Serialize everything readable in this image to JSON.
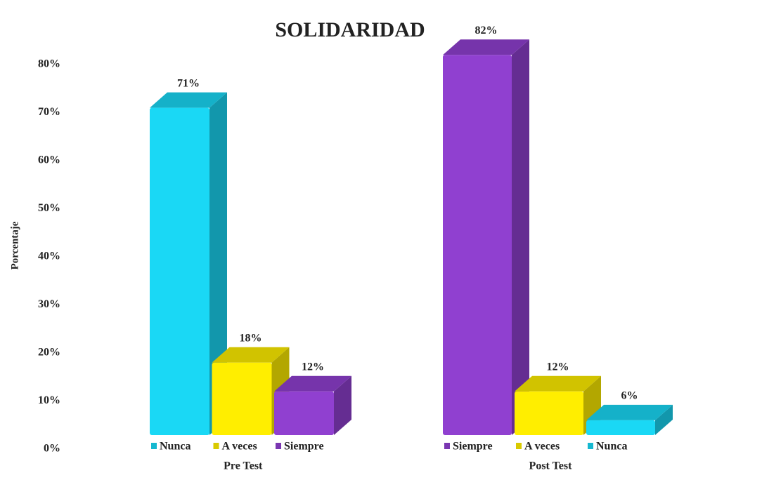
{
  "chart_data": {
    "type": "bar3d",
    "title": "SOLIDARIDAD",
    "ylabel": "Porcentaje",
    "ylim": [
      0,
      80
    ],
    "yticks": [
      {
        "value": 0,
        "label": "0%"
      },
      {
        "value": 10,
        "label": "10%"
      },
      {
        "value": 20,
        "label": "20%"
      },
      {
        "value": 30,
        "label": "30%"
      },
      {
        "value": 40,
        "label": "40%"
      },
      {
        "value": 50,
        "label": "50%"
      },
      {
        "value": 60,
        "label": "60%"
      },
      {
        "value": 70,
        "label": "70%"
      },
      {
        "value": 80,
        "label": "80%"
      }
    ],
    "groups": [
      {
        "name": "Pre Test",
        "categories": [
          "Nunca",
          "A veces",
          "Siempre"
        ],
        "colors": [
          "#1ad8f5",
          "#ffee00",
          "#9040d0"
        ],
        "values": [
          71,
          18,
          12
        ],
        "value_labels": [
          "71%",
          "18%",
          "12%"
        ]
      },
      {
        "name": "Post Test",
        "categories": [
          "Siempre",
          "A veces",
          "Nunca"
        ],
        "colors": [
          "#9040d0",
          "#ffee00",
          "#1ad8f5"
        ],
        "values": [
          82,
          12,
          6
        ],
        "value_labels": [
          "82%",
          "12%",
          "6%"
        ]
      }
    ]
  }
}
